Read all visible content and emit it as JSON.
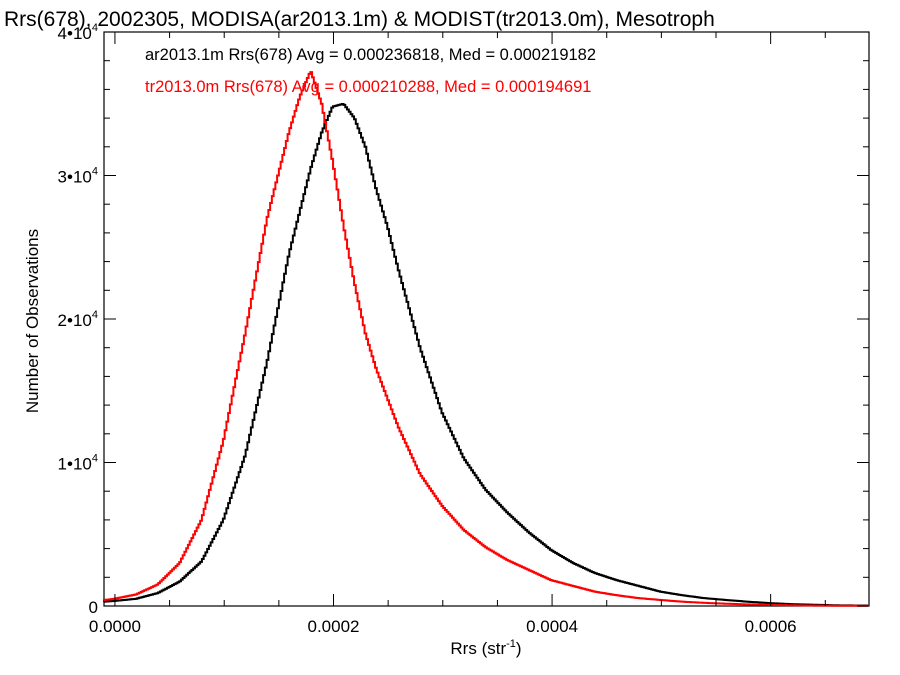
{
  "chart_data": {
    "type": "line",
    "style": "histogram-step",
    "title": "Rrs(678), 2002305, MODISA(ar2013.1m) & MODIST(tr2013.0m), Mesotroph",
    "xlabel": "Rrs (str",
    "xlabel_sup": "-1",
    "xlabel_end": ")",
    "ylabel": "Number of Observations",
    "xlim": [
      -1e-05,
      0.00069
    ],
    "ylim": [
      0,
      40000
    ],
    "x_ticks": [
      {
        "value": 0.0,
        "label": "0.0000"
      },
      {
        "value": 0.0002,
        "label": "0.0002"
      },
      {
        "value": 0.0004,
        "label": "0.0004"
      },
      {
        "value": 0.0006,
        "label": "0.0006"
      }
    ],
    "y_ticks": [
      {
        "value": 0,
        "mant": "0",
        "exp": ""
      },
      {
        "value": 10000,
        "mant": "1•10",
        "exp": "4"
      },
      {
        "value": 20000,
        "mant": "2•10",
        "exp": "4"
      },
      {
        "value": 30000,
        "mant": "3•10",
        "exp": "4"
      },
      {
        "value": 40000,
        "mant": "4•10",
        "exp": "4"
      }
    ],
    "legend_placement": "top-left",
    "series": [
      {
        "name": "ar2013.1m Rrs(678)",
        "annotation": "ar2013.1m Rrs(678) Avg = 0.000236818, Med = 0.000219182",
        "color": "#000000",
        "x": [
          -1e-05,
          0.0,
          2e-05,
          4e-05,
          6e-05,
          8e-05,
          0.0001,
          0.00012,
          0.00014,
          0.00016,
          0.00018,
          0.00019,
          0.0002,
          0.00021,
          0.00022,
          0.00023,
          0.00024,
          0.00025,
          0.00026,
          0.00028,
          0.0003,
          0.00032,
          0.00034,
          0.00036,
          0.00038,
          0.0004,
          0.00042,
          0.00044,
          0.00046,
          0.00048,
          0.0005,
          0.00052,
          0.00054,
          0.00056,
          0.00058,
          0.0006,
          0.00062,
          0.00064,
          0.00066,
          0.00069
        ],
        "y": [
          300,
          350,
          500,
          900,
          1700,
          3100,
          6000,
          10500,
          17000,
          24500,
          30500,
          33000,
          34800,
          35000,
          34000,
          32000,
          29000,
          26500,
          23500,
          18000,
          13500,
          10300,
          8100,
          6500,
          5100,
          3900,
          3000,
          2300,
          1800,
          1400,
          1000,
          750,
          550,
          420,
          300,
          200,
          130,
          90,
          50,
          30
        ]
      },
      {
        "name": "tr2013.0m Rrs(678)",
        "annotation": "tr2013.0m Rrs(678) Avg = 0.000210288, Med = 0.000194691",
        "color": "#ff0000",
        "x": [
          -1e-05,
          0.0,
          2e-05,
          4e-05,
          6e-05,
          8e-05,
          0.0001,
          0.00012,
          0.00014,
          0.00016,
          0.00017,
          0.00018,
          0.00019,
          0.0002,
          0.00021,
          0.00022,
          0.00023,
          0.00024,
          0.00026,
          0.00028,
          0.0003,
          0.00032,
          0.00034,
          0.00036,
          0.00038,
          0.0004,
          0.00042,
          0.00044,
          0.00046,
          0.00048,
          0.0005,
          0.00052,
          0.00054,
          0.00056,
          0.00058,
          0.0006,
          0.00062,
          0.00064,
          0.00066,
          0.00069
        ],
        "y": [
          400,
          500,
          800,
          1500,
          3000,
          6000,
          11500,
          19000,
          27000,
          33000,
          35500,
          37300,
          35000,
          31000,
          26500,
          22500,
          19000,
          16500,
          12500,
          9200,
          7000,
          5300,
          4100,
          3200,
          2500,
          1800,
          1400,
          1000,
          750,
          550,
          420,
          300,
          220,
          160,
          110,
          80,
          50,
          30,
          20,
          10
        ]
      }
    ]
  }
}
